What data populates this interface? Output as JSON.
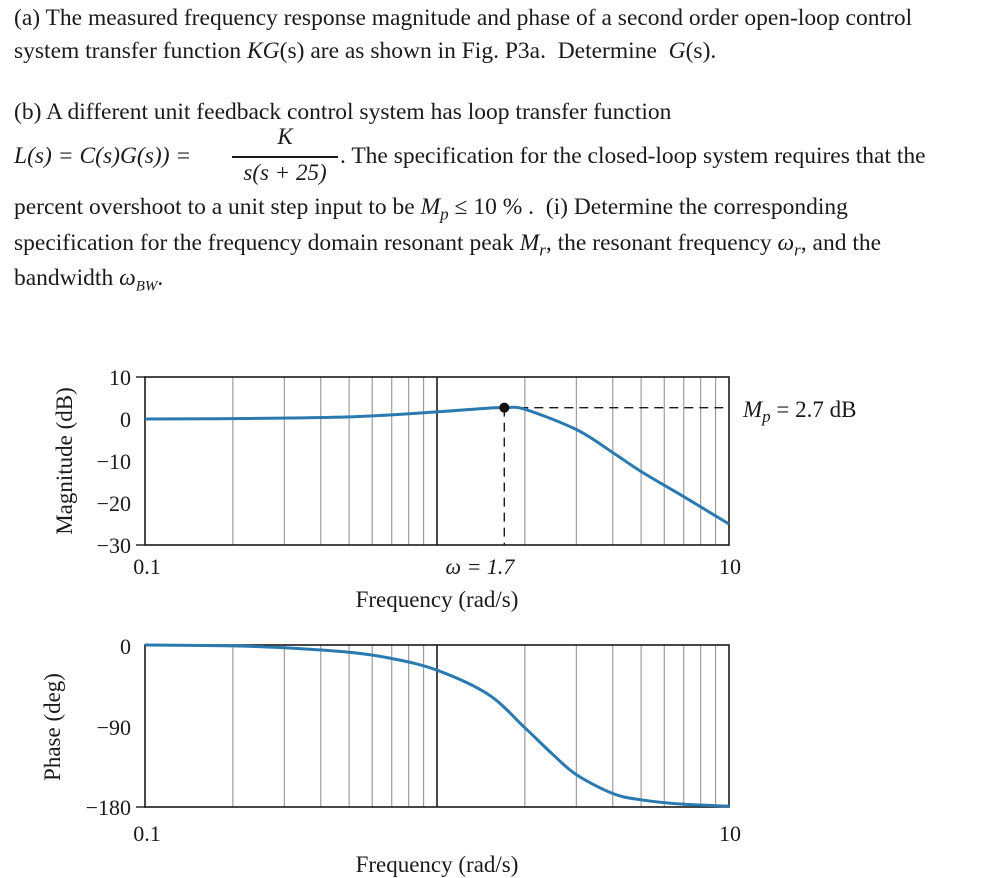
{
  "problem": {
    "part_a_line1": "(a) The measured frequency response magnitude and phase of a second order open-loop control",
    "part_a_line2_pre": "system transfer function ",
    "part_a_kgs": "KG",
    "part_a_s1": "(s)",
    "part_a_mid": " are as shown in Fig. P3a.  Determine  ",
    "part_a_gs": "G",
    "part_a_s2": "(s)",
    "part_a_end": ".",
    "part_b_line1": "(b) A different unit feedback control system has loop transfer function",
    "part_b_lhs": "L(s) = C(s)G(s)) =",
    "part_b_num": "K",
    "part_b_den": "s(s + 25)",
    "part_b_rest": ".  The specification for the closed-loop system requires that the",
    "part_b_line3a": "percent overshoot to a unit step input to be ",
    "part_b_mp": "M",
    "part_b_mp_sub": "p",
    "part_b_line3b": " ≤ 10 % .  (i) Determine the corresponding",
    "part_b_line4a": "specification for the frequency domain resonant peak ",
    "part_b_mr": "M",
    "part_b_mr_sub": "r",
    "part_b_line4b": ", the resonant frequency ",
    "part_b_wr": "ω",
    "part_b_wr_sub": "r",
    "part_b_line4c": ", and the",
    "part_b_line5a": "bandwidth ",
    "part_b_wbw": "ω",
    "part_b_wbw_sub": "BW",
    "part_b_line5b": "."
  },
  "chart_data": [
    {
      "type": "line",
      "title": "",
      "xlabel": "Frequency (rad/s)",
      "ylabel": "Magnitude (dB)",
      "x_scale": "log",
      "xlim": [
        0.1,
        10
      ],
      "ylim": [
        -30,
        10
      ],
      "x_tick_labels": [
        "0.1",
        "10"
      ],
      "y_tick_labels": [
        "10",
        "0",
        "−10",
        "−20",
        "−30"
      ],
      "grid": true,
      "series": [
        {
          "x": [
            0.1,
            0.2,
            0.5,
            1.0,
            1.5,
            1.7,
            2.0,
            3.0,
            4.0,
            5.0,
            7.0,
            10.0
          ],
          "values": [
            0.0,
            0.1,
            0.5,
            1.7,
            2.6,
            2.7,
            2.3,
            -2.5,
            -8.0,
            -12.5,
            -18.5,
            -25.0
          ]
        }
      ],
      "annotations": {
        "peak_label": "M",
        "peak_label_sub": "p",
        "peak_label_value": " = 2.7 dB",
        "peak_freq_label": "ω = 1.7",
        "peak": {
          "x": 1.7,
          "y": 2.7
        }
      }
    },
    {
      "type": "line",
      "title": "",
      "xlabel": "Frequency (rad/s)",
      "ylabel": "Phase (deg)",
      "x_scale": "log",
      "xlim": [
        0.1,
        10
      ],
      "ylim": [
        -180,
        0
      ],
      "x_tick_labels": [
        "0.1",
        "10"
      ],
      "y_tick_labels": [
        "0",
        "−90",
        "−180"
      ],
      "grid": true,
      "series": [
        {
          "x": [
            0.1,
            0.2,
            0.3,
            0.5,
            0.7,
            1.0,
            1.5,
            2.0,
            2.5,
            3.0,
            4.0,
            5.0,
            7.0,
            10.0
          ],
          "values": [
            0,
            -1,
            -3,
            -8,
            -15,
            -28,
            -55,
            -92,
            -122,
            -144,
            -165,
            -172,
            -177,
            -179
          ]
        }
      ]
    }
  ],
  "colors": {
    "curve": "#2a7ab0",
    "axis": "#1a1a1a",
    "grid_minor": "#8a8a8a",
    "grid_major": "#1a1a1a"
  }
}
